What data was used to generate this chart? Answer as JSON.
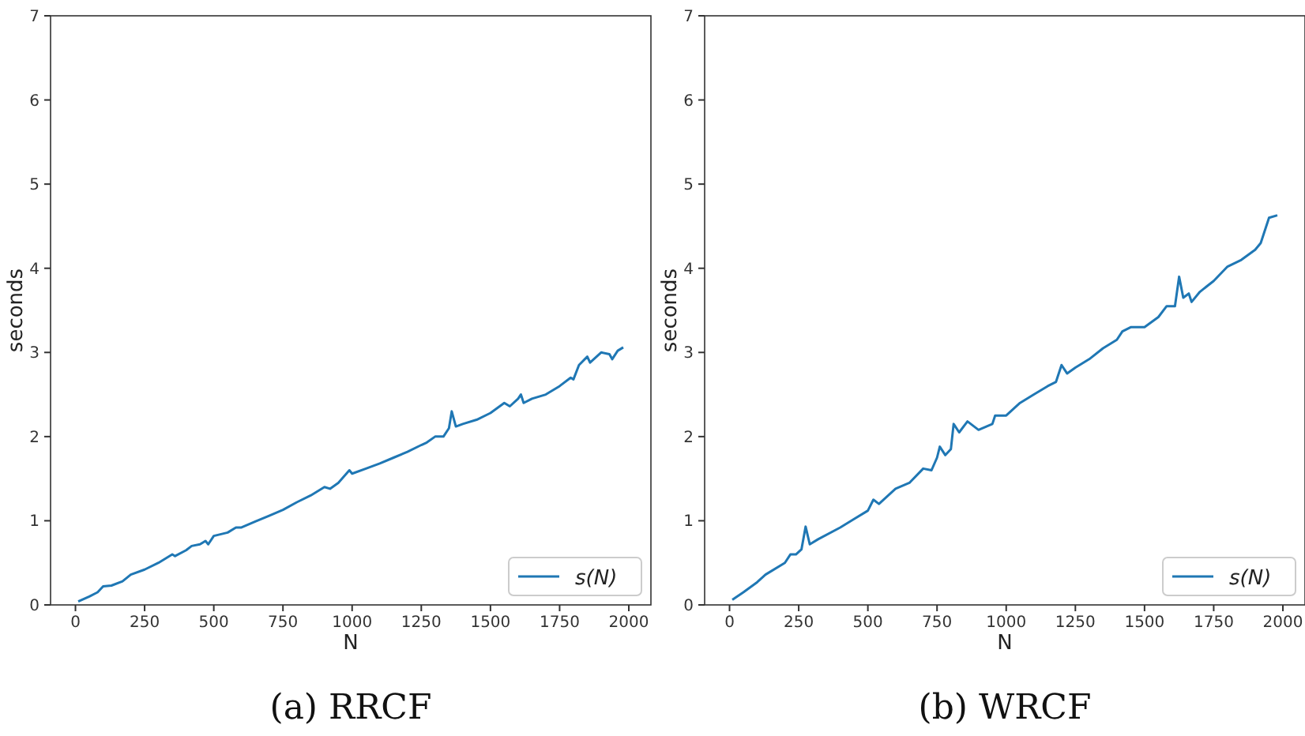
{
  "chart_data": [
    {
      "type": "line",
      "title": "(a) RRCF",
      "xlabel": "N",
      "ylabel": "seconds",
      "xlim": [
        -90,
        2080
      ],
      "ylim": [
        0,
        7
      ],
      "xticks": [
        0,
        250,
        500,
        750,
        1000,
        1250,
        1500,
        1750,
        2000
      ],
      "yticks": [
        0,
        1,
        2,
        3,
        4,
        5,
        6,
        7
      ],
      "legend": "bottom right",
      "grid": false,
      "series": [
        {
          "name": "s(N)",
          "color": "#1f77b4",
          "x": [
            10,
            50,
            80,
            100,
            130,
            170,
            200,
            250,
            300,
            350,
            360,
            400,
            420,
            450,
            470,
            480,
            500,
            550,
            580,
            600,
            650,
            700,
            750,
            800,
            850,
            900,
            920,
            950,
            990,
            1000,
            1050,
            1100,
            1150,
            1200,
            1250,
            1270,
            1300,
            1330,
            1350,
            1360,
            1375,
            1400,
            1450,
            1500,
            1550,
            1570,
            1600,
            1610,
            1620,
            1650,
            1700,
            1750,
            1790,
            1800,
            1820,
            1850,
            1860,
            1900,
            1930,
            1940,
            1960,
            1980
          ],
          "values": [
            0.04,
            0.1,
            0.15,
            0.22,
            0.23,
            0.28,
            0.36,
            0.42,
            0.5,
            0.6,
            0.58,
            0.65,
            0.7,
            0.72,
            0.76,
            0.72,
            0.82,
            0.86,
            0.92,
            0.92,
            0.99,
            1.06,
            1.13,
            1.22,
            1.3,
            1.4,
            1.38,
            1.45,
            1.6,
            1.56,
            1.62,
            1.68,
            1.75,
            1.82,
            1.9,
            1.93,
            2.0,
            2.0,
            2.1,
            2.3,
            2.12,
            2.15,
            2.2,
            2.28,
            2.4,
            2.36,
            2.45,
            2.5,
            2.4,
            2.45,
            2.5,
            2.6,
            2.7,
            2.68,
            2.85,
            2.95,
            2.88,
            3.0,
            2.98,
            2.92,
            3.02,
            3.06
          ]
        }
      ]
    },
    {
      "type": "line",
      "title": "(b) WRCF",
      "xlabel": "N",
      "ylabel": "seconds",
      "xlim": [
        -90,
        2080
      ],
      "ylim": [
        0,
        7
      ],
      "xticks": [
        0,
        250,
        500,
        750,
        1000,
        1250,
        1500,
        1750,
        2000
      ],
      "yticks": [
        0,
        1,
        2,
        3,
        4,
        5,
        6,
        7
      ],
      "legend": "bottom right",
      "grid": false,
      "series": [
        {
          "name": "s(N)",
          "color": "#1f77b4",
          "x": [
            10,
            50,
            100,
            130,
            200,
            220,
            240,
            260,
            275,
            290,
            320,
            400,
            450,
            500,
            520,
            540,
            600,
            650,
            700,
            730,
            750,
            760,
            780,
            800,
            810,
            830,
            860,
            900,
            950,
            960,
            1000,
            1050,
            1100,
            1150,
            1180,
            1200,
            1220,
            1250,
            1300,
            1350,
            1400,
            1420,
            1450,
            1500,
            1550,
            1580,
            1610,
            1625,
            1640,
            1660,
            1670,
            1700,
            1750,
            1800,
            1850,
            1900,
            1920,
            1950,
            1980
          ],
          "values": [
            0.06,
            0.15,
            0.27,
            0.36,
            0.5,
            0.6,
            0.6,
            0.66,
            0.93,
            0.72,
            0.78,
            0.92,
            1.02,
            1.12,
            1.25,
            1.2,
            1.38,
            1.45,
            1.62,
            1.6,
            1.75,
            1.88,
            1.78,
            1.85,
            2.15,
            2.05,
            2.18,
            2.08,
            2.15,
            2.25,
            2.25,
            2.4,
            2.5,
            2.6,
            2.65,
            2.85,
            2.75,
            2.82,
            2.92,
            3.05,
            3.15,
            3.25,
            3.3,
            3.3,
            3.42,
            3.55,
            3.55,
            3.9,
            3.65,
            3.7,
            3.6,
            3.72,
            3.85,
            4.02,
            4.1,
            4.22,
            4.3,
            4.6,
            4.63
          ]
        }
      ]
    }
  ]
}
